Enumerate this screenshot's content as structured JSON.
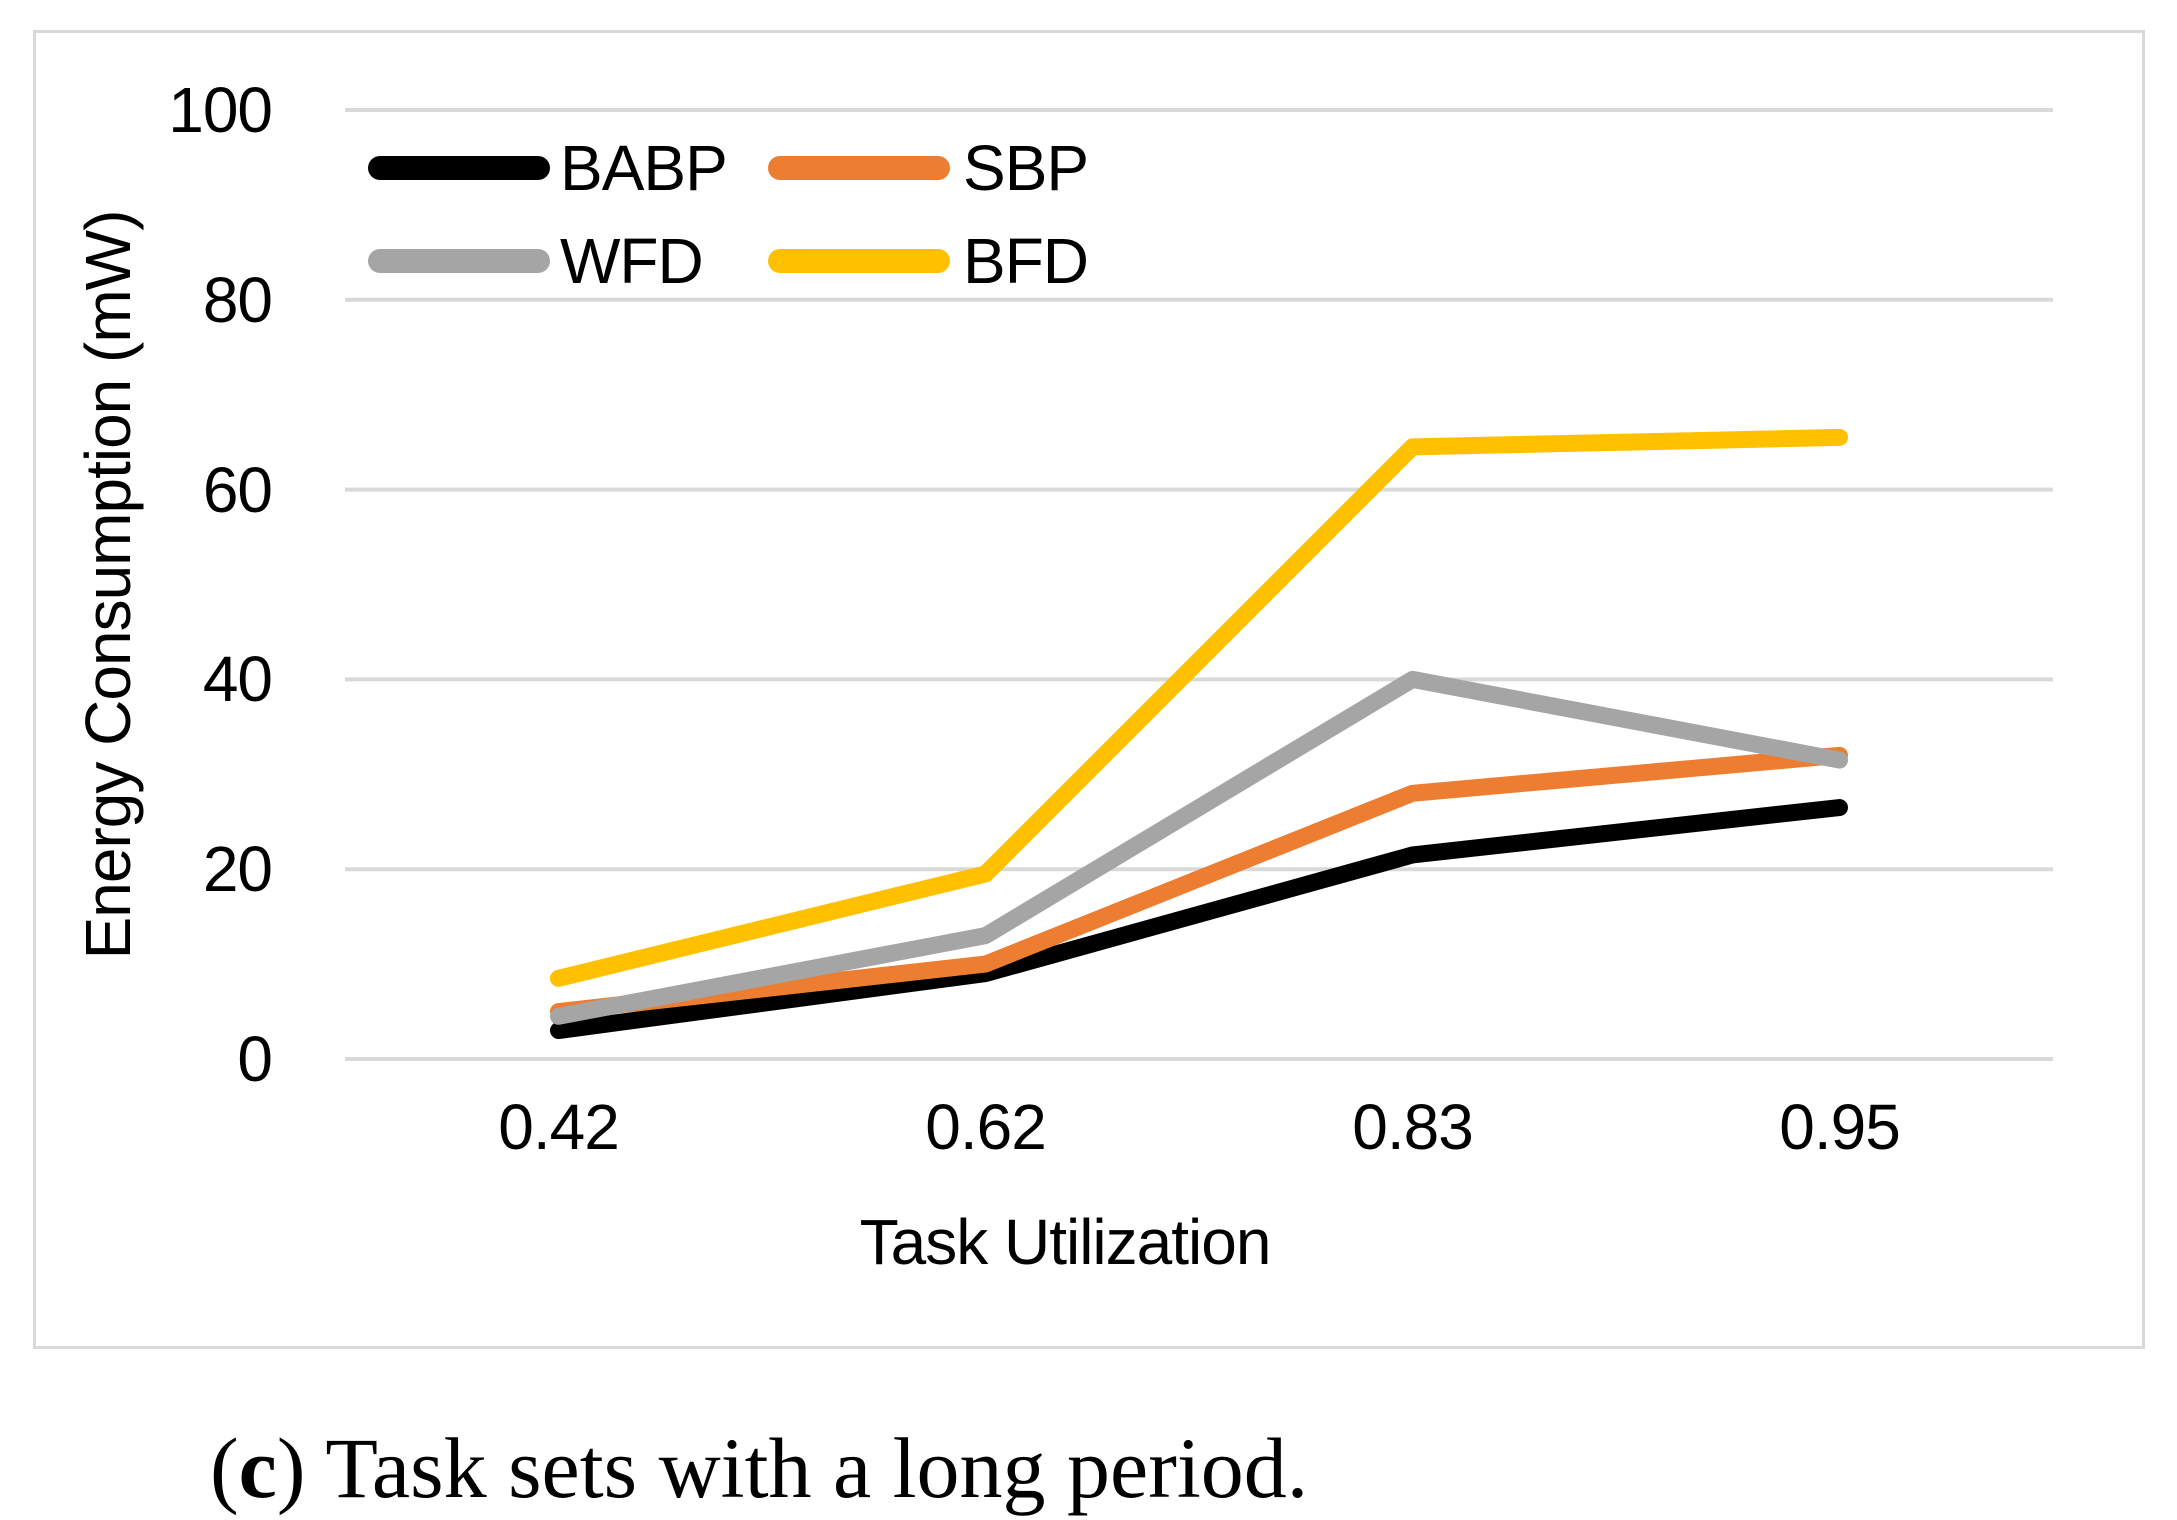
{
  "chart_data": {
    "type": "line",
    "title": "",
    "xlabel": "Task Utilization",
    "ylabel": "Energy Consumption (mW)",
    "categories": [
      "0.42",
      "0.62",
      "0.83",
      "0.95"
    ],
    "series": [
      {
        "name": "BABP",
        "color": "#000000",
        "values": [
          3,
          9,
          21.5,
          26.5
        ]
      },
      {
        "name": "SBP",
        "color": "#ED7D31",
        "values": [
          5,
          10,
          28,
          32
        ]
      },
      {
        "name": "WFD",
        "color": "#A5A5A5",
        "values": [
          4.5,
          13,
          40,
          31.5
        ]
      },
      {
        "name": "BFD",
        "color": "#FFC000",
        "values": [
          8.5,
          19.5,
          64.5,
          65.5
        ]
      }
    ],
    "y_ticks": [
      0,
      20,
      40,
      60,
      80,
      100
    ],
    "ylim": [
      0,
      100
    ],
    "grid": "horizontal-only",
    "legend_position": "top-left-inside",
    "legend_rows": [
      [
        "BABP",
        "SBP"
      ],
      [
        "WFD",
        "BFD"
      ]
    ]
  },
  "colors": {
    "grid": "#D9D9D9",
    "frame": "#D9D9D9",
    "text": "#000000",
    "background": "#FFFFFF"
  },
  "caption": {
    "prefix": "(",
    "bold_letter": "c",
    "suffix": ")",
    "text": "Task sets with a long period."
  }
}
